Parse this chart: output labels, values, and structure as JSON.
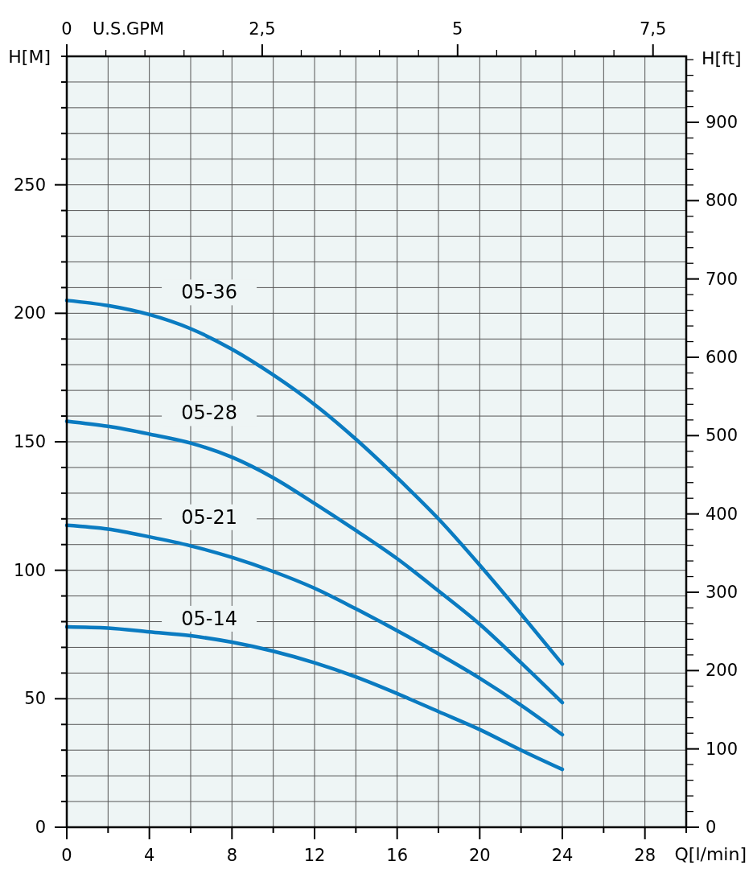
{
  "chart_data": {
    "type": "line",
    "xlabel": "Q[l/min]",
    "ylabel": "H[M]",
    "y2label": "H[ft]",
    "x2label": "U.S.GPM",
    "x": [
      0,
      2,
      4,
      6,
      8,
      10,
      12,
      14,
      16,
      18,
      20,
      22,
      24
    ],
    "series": [
      {
        "name": "05-36",
        "color": "#0a7bc1",
        "values": [
          205,
          203,
          199.5,
          194,
          186,
          176,
          164.5,
          151,
          136,
          120,
          102,
          83,
          63.5
        ]
      },
      {
        "name": "05-28",
        "color": "#0a7bc1",
        "values": [
          158,
          156,
          153,
          149.5,
          144,
          136,
          126,
          115.5,
          104.5,
          92,
          79,
          64,
          48.5
        ]
      },
      {
        "name": "05-21",
        "color": "#0a7bc1",
        "values": [
          117.5,
          116,
          113,
          109.5,
          105,
          99.5,
          93,
          85,
          76.5,
          67.5,
          58,
          47.5,
          36
        ]
      },
      {
        "name": "05-14",
        "color": "#0a7bc1",
        "values": [
          78,
          77.5,
          76,
          74.5,
          72,
          68.5,
          64,
          58.5,
          52,
          45,
          38,
          30,
          22.5
        ]
      }
    ],
    "xlim": [
      0,
      30
    ],
    "xticks": [
      0,
      {
        "value": 2,
        "label": null
      },
      4,
      {
        "value": 6,
        "label": null
      },
      8,
      {
        "value": 10,
        "label": null
      },
      12,
      {
        "value": 14,
        "label": null
      },
      16,
      {
        "value": 18,
        "label": null
      },
      20,
      {
        "value": 22,
        "label": null
      },
      24,
      {
        "value": 26,
        "label": null
      },
      28,
      {
        "value": 30,
        "label": null
      }
    ],
    "ylim": [
      0,
      300
    ],
    "yticks": [
      0,
      {
        "value": 10,
        "label": null
      },
      {
        "value": 20,
        "label": null
      },
      {
        "value": 30,
        "label": null
      },
      {
        "value": 40,
        "label": null
      },
      50,
      {
        "value": 60,
        "label": null
      },
      {
        "value": 70,
        "label": null
      },
      {
        "value": 80,
        "label": null
      },
      {
        "value": 90,
        "label": null
      },
      100,
      {
        "value": 110,
        "label": null
      },
      {
        "value": 120,
        "label": null
      },
      {
        "value": 130,
        "label": null
      },
      {
        "value": 140,
        "label": null
      },
      150,
      {
        "value": 160,
        "label": null
      },
      {
        "value": 170,
        "label": null
      },
      {
        "value": 180,
        "label": null
      },
      {
        "value": 190,
        "label": null
      },
      200,
      {
        "value": 210,
        "label": null
      },
      {
        "value": 220,
        "label": null
      },
      {
        "value": 230,
        "label": null
      },
      {
        "value": 240,
        "label": null
      },
      250,
      {
        "value": 260,
        "label": null
      },
      {
        "value": 270,
        "label": null
      },
      {
        "value": 280,
        "label": null
      },
      {
        "value": 290,
        "label": null
      },
      {
        "value": 300,
        "label": null
      }
    ],
    "y2lim": [
      0,
      984.25
    ],
    "y2ticks": [
      0,
      {
        "value": 20,
        "label": null
      },
      {
        "value": 40,
        "label": null
      },
      {
        "value": 60,
        "label": null
      },
      {
        "value": 80,
        "label": null
      },
      100,
      {
        "value": 120,
        "label": null
      },
      {
        "value": 140,
        "label": null
      },
      {
        "value": 160,
        "label": null
      },
      {
        "value": 180,
        "label": null
      },
      200,
      {
        "value": 220,
        "label": null
      },
      {
        "value": 240,
        "label": null
      },
      {
        "value": 260,
        "label": null
      },
      {
        "value": 280,
        "label": null
      },
      300,
      {
        "value": 320,
        "label": null
      },
      {
        "value": 340,
        "label": null
      },
      {
        "value": 360,
        "label": null
      },
      {
        "value": 380,
        "label": null
      },
      400,
      {
        "value": 420,
        "label": null
      },
      {
        "value": 440,
        "label": null
      },
      {
        "value": 460,
        "label": null
      },
      {
        "value": 480,
        "label": null
      },
      500,
      {
        "value": 520,
        "label": null
      },
      {
        "value": 540,
        "label": null
      },
      {
        "value": 560,
        "label": null
      },
      {
        "value": 580,
        "label": null
      },
      600,
      {
        "value": 620,
        "label": null
      },
      {
        "value": 640,
        "label": null
      },
      {
        "value": 660,
        "label": null
      },
      {
        "value": 680,
        "label": null
      },
      700,
      {
        "value": 720,
        "label": null
      },
      {
        "value": 740,
        "label": null
      },
      {
        "value": 760,
        "label": null
      },
      {
        "value": 780,
        "label": null
      },
      800,
      {
        "value": 820,
        "label": null
      },
      {
        "value": 840,
        "label": null
      },
      {
        "value": 860,
        "label": null
      },
      {
        "value": 880,
        "label": null
      },
      900,
      {
        "value": 920,
        "label": null
      },
      {
        "value": 940,
        "label": null
      },
      {
        "value": 960,
        "label": null
      },
      {
        "value": 980,
        "label": null
      }
    ],
    "x2lim": [
      0,
      7.925
    ],
    "x2ticks": [
      0,
      {
        "value": 0.5,
        "label": null
      },
      {
        "value": 1,
        "label": null
      },
      {
        "value": 1.5,
        "label": null
      },
      {
        "value": 2,
        "label": null
      },
      {
        "value": 2.5,
        "label": "2,5"
      },
      {
        "value": 3,
        "label": null
      },
      {
        "value": 3.5,
        "label": null
      },
      {
        "value": 4,
        "label": null
      },
      {
        "value": 4.5,
        "label": null
      },
      5,
      {
        "value": 5.5,
        "label": null
      },
      {
        "value": 6,
        "label": null
      },
      {
        "value": 6.5,
        "label": null
      },
      {
        "value": 7,
        "label": null
      },
      {
        "value": 7.5,
        "label": "7,5"
      }
    ],
    "grid": true,
    "line_style": "solid"
  }
}
